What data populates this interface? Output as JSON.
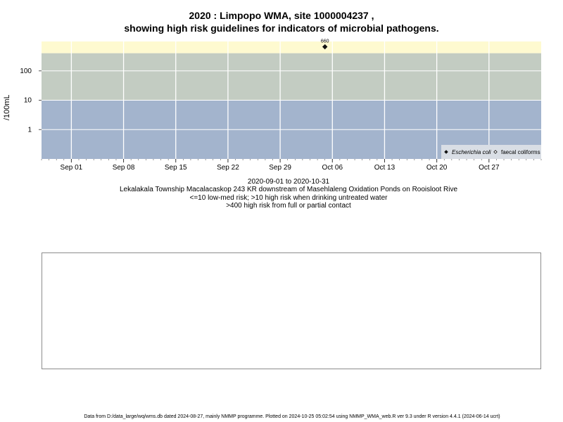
{
  "title": {
    "line1": "2020 : Limpopo WMA, site 1000004237 ,",
    "line2": "showing high risk guidelines for indicators of microbial pathogens."
  },
  "captions": {
    "date_range": "2020-09-01 to 2020-10-31",
    "site_description": "Lekalakala Township Macalacaskop 243 KR downstream of Masehlaleng Oxidation Ponds on Rooisloot Rive",
    "risk_low": "<=10 low-med risk; >10 high risk when drinking untreated water",
    "risk_high": ">400 high risk from full or partial contact"
  },
  "footer": "Data from D:/data_large/wq/wms.db dated 2024-08-27, mainly NMMP programme. Plotted on 2024-10-25 05:02:54 using NMMP_WMA_web.R ver 9.3 under R version 4.4.1 (2024-06-14 ucrt)",
  "colors": {
    "band_low": "#a3b4cd",
    "band_mid": "#c3ccc2",
    "band_high": "#fefad0",
    "grid": "#ffffff",
    "legend_bg": "#d9dee5"
  },
  "chart_data": {
    "type": "scatter",
    "title": "2020 : Limpopo WMA, site 1000004237 , showing high risk guidelines for indicators of microbial pathogens.",
    "xlabel": "",
    "ylabel": "/100mL",
    "y_scale": "log",
    "ylim": [
      0.1,
      1000
    ],
    "xlim": [
      "2020-08-28",
      "2020-11-03"
    ],
    "x_ticks": [
      "Sep 01",
      "Sep 08",
      "Sep 15",
      "Sep 22",
      "Sep 29",
      "Oct 06",
      "Oct 13",
      "Oct 20",
      "Oct 27"
    ],
    "x_tick_dates": [
      "2020-09-01",
      "2020-09-08",
      "2020-09-15",
      "2020-09-22",
      "2020-09-29",
      "2020-10-06",
      "2020-10-13",
      "2020-10-20",
      "2020-10-27"
    ],
    "y_ticks": [
      1,
      10,
      100
    ],
    "y_tick_labels": [
      "1",
      "10",
      "100"
    ],
    "risk_bands": [
      {
        "from": 0.1,
        "to": 10,
        "color": "#a3b4cd"
      },
      {
        "from": 10,
        "to": 400,
        "color": "#c3ccc2"
      },
      {
        "from": 400,
        "to": 1000,
        "color": "#fefad0"
      }
    ],
    "grid": true,
    "legend_position": "bottom-right",
    "series": [
      {
        "name": "Escherichia coli",
        "marker": "filled-diamond",
        "points": [
          {
            "x": "2020-10-05",
            "y": 660,
            "label": "660"
          }
        ]
      },
      {
        "name": "faecal coliforms",
        "marker": "open-diamond",
        "points": []
      }
    ]
  }
}
